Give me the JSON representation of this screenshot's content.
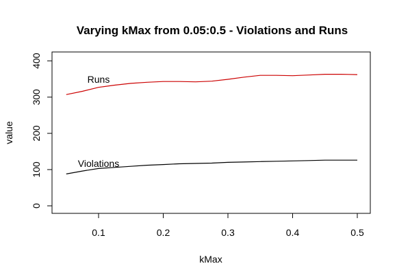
{
  "chart_data": {
    "type": "line",
    "title": "Varying kMax from 0.05:0.5 - Violations and Runs",
    "xlabel": "kMax",
    "ylabel": "value",
    "xlim": [
      0.05,
      0.5
    ],
    "ylim": [
      0,
      400
    ],
    "xticks": [
      0.1,
      0.2,
      0.3,
      0.4,
      0.5
    ],
    "yticks": [
      0,
      100,
      200,
      300,
      400
    ],
    "grid": false,
    "legend": "none",
    "x": [
      0.05,
      0.075,
      0.1,
      0.125,
      0.15,
      0.175,
      0.2,
      0.225,
      0.25,
      0.275,
      0.3,
      0.325,
      0.35,
      0.375,
      0.4,
      0.425,
      0.45,
      0.475,
      0.5
    ],
    "series": [
      {
        "name": "Runs",
        "color": "#cc0000",
        "values": [
          307,
          316,
          327,
          333,
          338,
          341,
          343,
          343,
          342,
          344,
          349,
          355,
          360,
          360,
          359,
          361,
          363,
          363,
          362
        ]
      },
      {
        "name": "Violations",
        "color": "#000000",
        "values": [
          88,
          96,
          103,
          106,
          109,
          112,
          114,
          116,
          117,
          118,
          120,
          121,
          122,
          123,
          124,
          125,
          126,
          126,
          126
        ]
      }
    ],
    "annotations": [
      {
        "text": "Runs",
        "x": 0.1,
        "y": 349
      },
      {
        "text": "Violations",
        "x": 0.1,
        "y": 117
      }
    ]
  }
}
